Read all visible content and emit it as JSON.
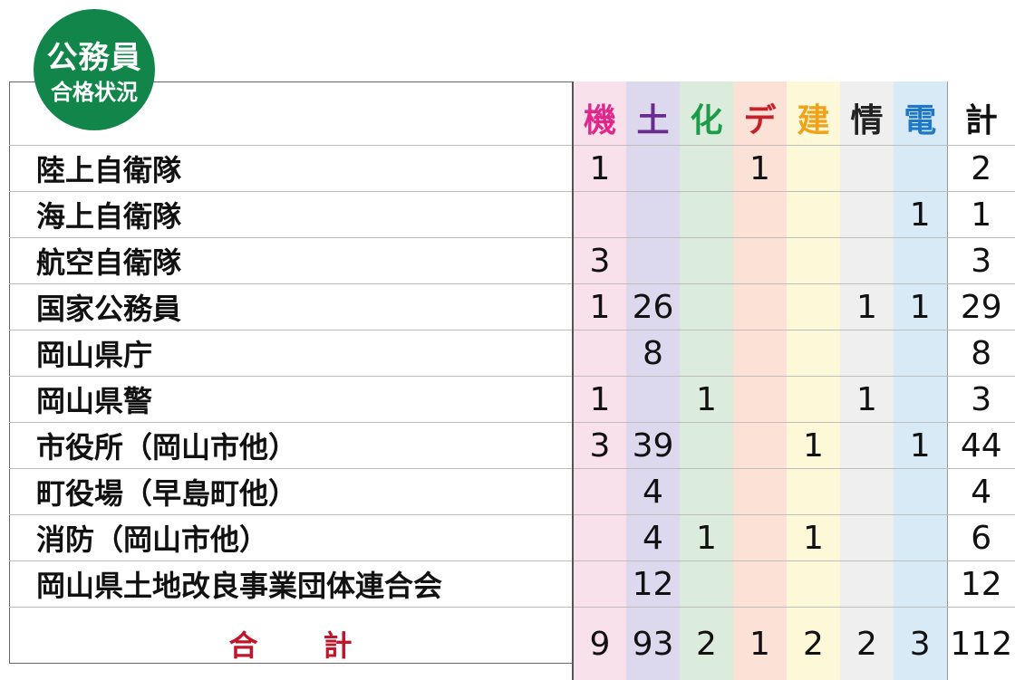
{
  "badge": {
    "line1": "公務員",
    "line2": "合格状況"
  },
  "columns": [
    {
      "label": "機",
      "color": "#e0288a"
    },
    {
      "label": "土",
      "color": "#6a2a8e"
    },
    {
      "label": "化",
      "color": "#1c9b48"
    },
    {
      "label": "デ",
      "color": "#c8202b"
    },
    {
      "label": "建",
      "color": "#f0a21a"
    },
    {
      "label": "情",
      "color": "#222222"
    },
    {
      "label": "電",
      "color": "#1e78c8"
    },
    {
      "label": "計",
      "color": "#111111"
    }
  ],
  "rows": [
    {
      "name": "陸上自衛隊",
      "values": [
        "1",
        "",
        "",
        "1",
        "",
        "",
        "",
        "2"
      ]
    },
    {
      "name": "海上自衛隊",
      "values": [
        "",
        "",
        "",
        "",
        "",
        "",
        "1",
        "1"
      ]
    },
    {
      "name": "航空自衛隊",
      "values": [
        "3",
        "",
        "",
        "",
        "",
        "",
        "",
        "3"
      ]
    },
    {
      "name": "国家公務員",
      "values": [
        "1",
        "26",
        "",
        "",
        "",
        "1",
        "1",
        "29"
      ]
    },
    {
      "name": "岡山県庁",
      "values": [
        "",
        "8",
        "",
        "",
        "",
        "",
        "",
        "8"
      ]
    },
    {
      "name": "岡山県警",
      "values": [
        "1",
        "",
        "1",
        "",
        "",
        "1",
        "",
        "3"
      ]
    },
    {
      "name": "市役所（岡山市他）",
      "values": [
        "3",
        "39",
        "",
        "",
        "1",
        "",
        "1",
        "44"
      ]
    },
    {
      "name": "町役場（早島町他）",
      "values": [
        "",
        "4",
        "",
        "",
        "",
        "",
        "",
        "4"
      ]
    },
    {
      "name": "消防（岡山市他）",
      "values": [
        "",
        "4",
        "1",
        "",
        "1",
        "",
        "",
        "6"
      ]
    },
    {
      "name": "岡山県土地改良事業団体連合会",
      "values": [
        "",
        "12",
        "",
        "",
        "",
        "",
        "",
        "12"
      ]
    }
  ],
  "total": {
    "label_a": "合",
    "label_b": "計",
    "values": [
      "9",
      "93",
      "2",
      "1",
      "2",
      "2",
      "3",
      "112"
    ]
  }
}
